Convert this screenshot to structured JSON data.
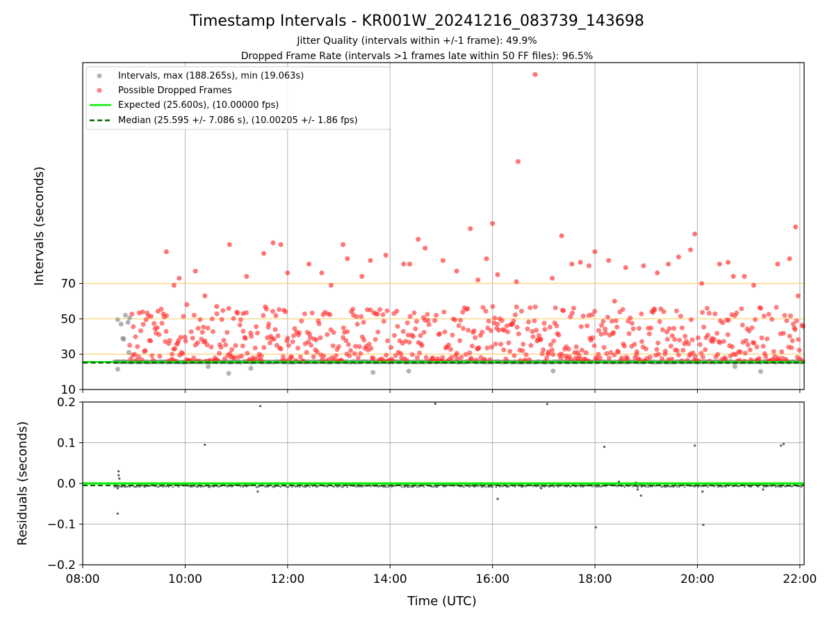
{
  "figure": {
    "title": "Timestamp Intervals - KR001W_20241216_083739_143698",
    "subtitle_1": "Jitter Quality (intervals within +/-1 frame): 49.9%",
    "subtitle_2": "Dropped Frame Rate (intervals >1 frames late within 50 FF files): 96.5%"
  },
  "chart_data": [
    {
      "type": "scatter",
      "xlabel": "Time (UTC)",
      "ylabel": "Intervals (seconds)",
      "xlim": [
        "08:00",
        "22:05"
      ],
      "ylim": [
        10,
        195
      ],
      "yticks": [
        10,
        30,
        50,
        70
      ],
      "xticks": [
        "08:00",
        "10:00",
        "12:00",
        "14:00",
        "16:00",
        "18:00",
        "20:00",
        "22:00"
      ],
      "grid": "vertical",
      "legend_position": "top-left",
      "reference_lines": [
        {
          "y": 30,
          "color": "#ffd27a"
        },
        {
          "y": 50,
          "color": "#ffd27a"
        },
        {
          "y": 70,
          "color": "#ffd27a"
        }
      ],
      "series": [
        {
          "name": "Intervals, max (188.265s), min (19.063s)",
          "color": "#808080",
          "points": [
            [
              "08:41",
              49.5
            ],
            [
              "08:45",
              47
            ],
            [
              "08:47",
              39
            ],
            [
              "08:48",
              38.5
            ],
            [
              "08:50",
              52
            ],
            [
              "08:53",
              48
            ],
            [
              "08:55",
              50.5
            ],
            [
              "08:54",
              31
            ],
            [
              "08:41",
              21.5
            ],
            [
              "10:27",
              23
            ],
            [
              "10:51",
              19.1
            ],
            [
              "11:17",
              22
            ],
            [
              "13:40",
              19.7
            ],
            [
              "14:22",
              20.4
            ],
            [
              "17:11",
              20.5
            ],
            [
              "20:44",
              23
            ],
            [
              "21:14",
              20.2
            ]
          ]
        },
        {
          "name": "Possible Dropped Frames",
          "color": "#ff2a2a",
          "points": [
            [
              "09:38",
              88
            ],
            [
              "09:47",
              69
            ],
            [
              "09:53",
              73
            ],
            [
              "10:02",
              58
            ],
            [
              "10:12",
              77
            ],
            [
              "10:23",
              63
            ],
            [
              "10:37",
              57
            ],
            [
              "10:52",
              92
            ],
            [
              "11:08",
              53
            ],
            [
              "11:12",
              74
            ],
            [
              "11:32",
              87
            ],
            [
              "11:43",
              93
            ],
            [
              "11:52",
              92
            ],
            [
              "12:00",
              76
            ],
            [
              "12:25",
              81
            ],
            [
              "12:40",
              76
            ],
            [
              "12:51",
              69
            ],
            [
              "13:05",
              92
            ],
            [
              "13:10",
              84
            ],
            [
              "13:27",
              74
            ],
            [
              "13:37",
              83
            ],
            [
              "13:55",
              86
            ],
            [
              "14:16",
              81
            ],
            [
              "14:23",
              81
            ],
            [
              "14:33",
              95
            ],
            [
              "14:41",
              90
            ],
            [
              "15:02",
              83
            ],
            [
              "15:18",
              77
            ],
            [
              "15:34",
              101
            ],
            [
              "15:43",
              72
            ],
            [
              "15:53",
              84
            ],
            [
              "16:00",
              104
            ],
            [
              "16:06",
              75
            ],
            [
              "16:28",
              71
            ],
            [
              "16:30",
              139
            ],
            [
              "16:50",
              188.265
            ],
            [
              "17:10",
              73
            ],
            [
              "17:21",
              97
            ],
            [
              "17:33",
              81
            ],
            [
              "17:43",
              82
            ],
            [
              "17:53",
              80
            ],
            [
              "18:00",
              88
            ],
            [
              "18:16",
              83
            ],
            [
              "18:23",
              60
            ],
            [
              "18:36",
              79
            ],
            [
              "18:57",
              80
            ],
            [
              "19:13",
              76
            ],
            [
              "19:26",
              81
            ],
            [
              "19:38",
              85
            ],
            [
              "19:52",
              89
            ],
            [
              "19:57",
              98
            ],
            [
              "20:05",
              70
            ],
            [
              "20:26",
              81
            ],
            [
              "20:36",
              82
            ],
            [
              "20:42",
              74
            ],
            [
              "20:55",
              74
            ],
            [
              "21:06",
              69
            ],
            [
              "21:34",
              81
            ],
            [
              "21:48",
              84
            ],
            [
              "21:55",
              102
            ],
            [
              "21:58",
              63
            ]
          ],
          "bulk_band": [
            26,
            57
          ]
        },
        {
          "name": "Expected (25.600s), (10.00000 fps)",
          "color": "#00ee00",
          "style": "solid",
          "y": 25.6
        },
        {
          "name": "Median (25.595 +/- 7.086 s), (10.00205 +/- 1.86 fps)",
          "color": "#006400",
          "style": "dashed",
          "y": 25.595
        }
      ]
    },
    {
      "type": "scatter",
      "xlabel": "Time (UTC)",
      "ylabel": "Residuals (seconds)",
      "xlim": [
        "08:00",
        "22:05"
      ],
      "ylim": [
        -0.2,
        0.2
      ],
      "yticks": [
        -0.2,
        -0.1,
        0.0,
        0.1,
        0.2
      ],
      "ytick_labels": [
        "−0.2",
        "−0.1",
        "0.0",
        "0.1",
        "0.2"
      ],
      "xticks": [
        "08:00",
        "10:00",
        "12:00",
        "14:00",
        "16:00",
        "18:00",
        "20:00",
        "22:00"
      ],
      "grid": "both",
      "series": [
        {
          "name": "",
          "color": "#555555",
          "points": [
            [
              "08:41",
              -0.074
            ],
            [
              "08:42",
              0.03
            ],
            [
              "08:42",
              0.02
            ],
            [
              "08:43",
              0.012
            ],
            [
              "08:41",
              -0.012
            ],
            [
              "10:23",
              0.095
            ],
            [
              "11:25",
              -0.02
            ],
            [
              "11:28",
              0.19
            ],
            [
              "14:53",
              0.196
            ],
            [
              "16:06",
              -0.038
            ],
            [
              "16:34",
              -0.005
            ],
            [
              "16:57",
              -0.012
            ],
            [
              "17:04",
              0.195
            ],
            [
              "18:01",
              -0.108
            ],
            [
              "18:11",
              0.09
            ],
            [
              "18:28",
              0.004
            ],
            [
              "18:48",
              0.002
            ],
            [
              "18:50",
              -0.015
            ],
            [
              "18:54",
              -0.03
            ],
            [
              "19:57",
              0.093
            ],
            [
              "20:07",
              -0.102
            ],
            [
              "20:06",
              -0.02
            ],
            [
              "21:17",
              -0.015
            ],
            [
              "21:38",
              0.093
            ],
            [
              "21:41",
              0.097
            ],
            [
              "10:03",
              -0.002
            ],
            [
              "13:22",
              -0.004
            ],
            [
              "15:40",
              -0.003
            ]
          ],
          "baseline_y": -0.006
        },
        {
          "name": "",
          "color": "#00ee00",
          "style": "solid",
          "y": 0.0
        },
        {
          "name": "",
          "color": "#006400",
          "style": "dashed",
          "y": -0.005
        }
      ]
    }
  ]
}
